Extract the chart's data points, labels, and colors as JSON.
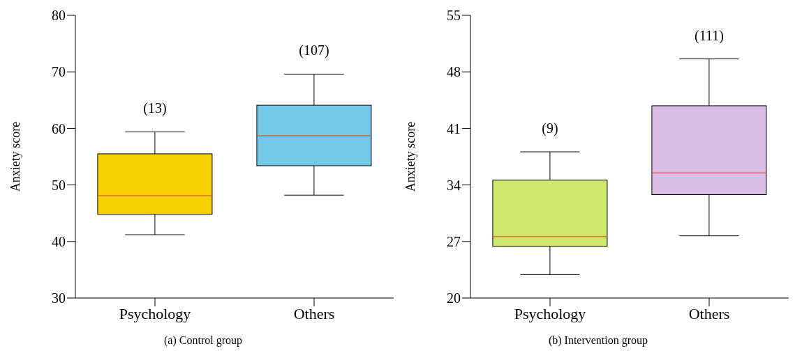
{
  "chart_data": [
    {
      "type": "box",
      "title": "(a) Control group",
      "ylabel": "Anxiety score",
      "categories": [
        "Psychology",
        "Others"
      ],
      "colors": [
        "#f7d000",
        "#72c8e6"
      ],
      "boxes": [
        {
          "low": 41.2,
          "q1": 44.8,
          "median": 48.1,
          "q3": 55.5,
          "high": 59.4
        },
        {
          "low": 48.2,
          "q1": 53.4,
          "median": 58.7,
          "q3": 64.1,
          "high": 69.6
        }
      ],
      "ylim": [
        30,
        80
      ],
      "yticks": [
        30,
        40,
        50,
        60,
        70,
        80
      ],
      "grid": false,
      "legend": false,
      "annotations": [
        "(13)",
        "(107)"
      ]
    },
    {
      "type": "box",
      "title": "(b) Intervention group",
      "ylabel": "Anxiety score",
      "categories": [
        "Psychology",
        "Others"
      ],
      "colors": [
        "#cee86a",
        "#d8bde6"
      ],
      "boxes": [
        {
          "low": 22.9,
          "q1": 26.4,
          "median": 27.6,
          "q3": 34.6,
          "high": 38.1
        },
        {
          "low": 27.7,
          "q1": 32.8,
          "median": 35.5,
          "q3": 43.8,
          "high": 49.6
        }
      ],
      "ylim": [
        20,
        55
      ],
      "yticks": [
        20,
        27,
        34,
        41,
        48,
        55
      ],
      "grid": false,
      "legend": false,
      "annotations": [
        "(9)",
        "(111)"
      ]
    }
  ]
}
